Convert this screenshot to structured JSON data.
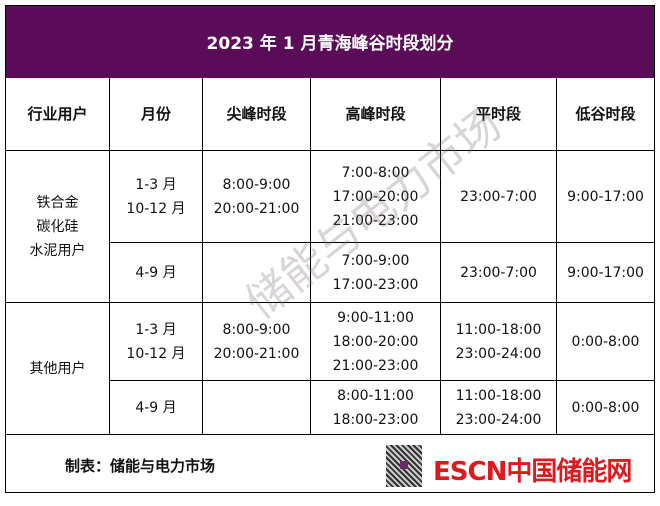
{
  "title": "2023 年 1 月青海峰谷时段划分",
  "headers": [
    "行业用户",
    "月份",
    "尖峰时段",
    "高峰时段",
    "平时段",
    "低谷时段"
  ],
  "groups": [
    {
      "user": [
        "铁合金",
        "碳化硅",
        "水泥用户"
      ],
      "rows": [
        {
          "months": [
            "1-3 月",
            "10-12 月"
          ],
          "sharp": [
            "8:00-9:00",
            "20:00-21:00"
          ],
          "peak": [
            "7:00-8:00",
            "17:00-20:00",
            "21:00-23:00"
          ],
          "flat": [
            "23:00-7:00"
          ],
          "valley": [
            "9:00-17:00"
          ]
        },
        {
          "months": [
            "4-9 月"
          ],
          "sharp": [],
          "peak": [
            "7:00-9:00",
            "17:00-23:00"
          ],
          "flat": [
            "23:00-7:00"
          ],
          "valley": [
            "9:00-17:00"
          ]
        }
      ]
    },
    {
      "user": [
        "其他用户"
      ],
      "rows": [
        {
          "months": [
            "1-3 月",
            "10-12 月"
          ],
          "sharp": [
            "8:00-9:00",
            "20:00-21:00"
          ],
          "peak": [
            "9:00-11:00",
            "18:00-20:00",
            "21:00-23:00"
          ],
          "flat": [
            "11:00-18:00",
            "23:00-24:00"
          ],
          "valley": [
            "0:00-8:00"
          ]
        },
        {
          "months": [
            "4-9 月"
          ],
          "sharp": [],
          "peak": [
            "8:00-11:00",
            "18:00-23:00"
          ],
          "flat": [
            "11:00-18:00",
            "23:00-24:00"
          ],
          "valley": [
            "0:00-8:00"
          ]
        }
      ]
    }
  ],
  "footer": {
    "credit": "制表：储能与电力市场",
    "logo": "ESCN中国储能网"
  },
  "watermark": "储能与电力市场",
  "colors": {
    "title_bg": "#5b0c58",
    "logo": "#e0191f"
  }
}
